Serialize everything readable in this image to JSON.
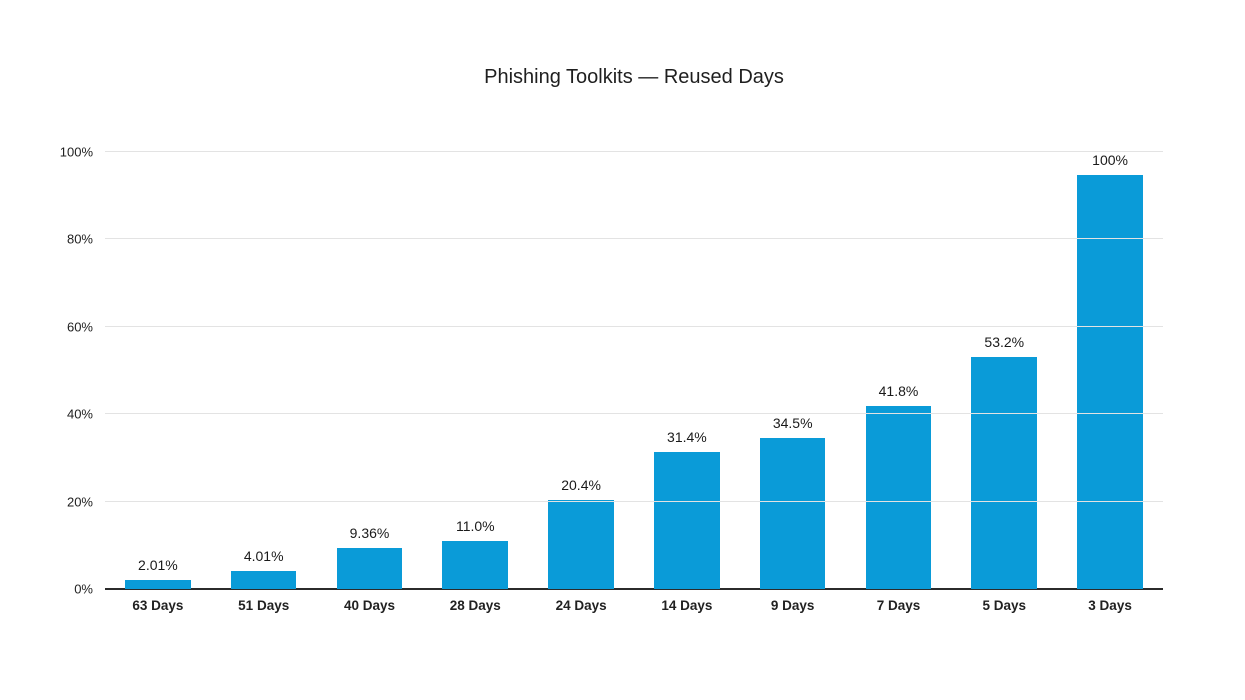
{
  "chart_data": {
    "type": "bar",
    "title": "Phishing Toolkits — Reused Days",
    "categories": [
      "63 Days",
      "51 Days",
      "40 Days",
      "28 Days",
      "24 Days",
      "14 Days",
      "9 Days",
      "7 Days",
      "5 Days",
      "3 Days"
    ],
    "values": [
      2.01,
      4.01,
      9.36,
      11.0,
      20.4,
      31.4,
      34.5,
      41.8,
      53.2,
      100
    ],
    "value_labels": [
      "2.01%",
      "4.01%",
      "9.36%",
      "11.0%",
      "20.4%",
      "31.4%",
      "34.5%",
      "41.8%",
      "53.2%",
      "100%"
    ],
    "xlabel": "",
    "ylabel": "",
    "ylim": [
      0,
      100
    ],
    "yticks": {
      "values": [
        0,
        20,
        40,
        60,
        80,
        100
      ],
      "labels": [
        "0%",
        "20%",
        "40%",
        "60%",
        "80%",
        "100%"
      ]
    },
    "grid": "horizontal",
    "legend": "none",
    "colors": {
      "bar": "#0a9bd8",
      "gridline": "#e3e3e3",
      "axis_line": "#2b2b2b",
      "title_text": "#1f1f1f",
      "label_text": "#1a1a1a",
      "background": "#ffffff"
    }
  }
}
